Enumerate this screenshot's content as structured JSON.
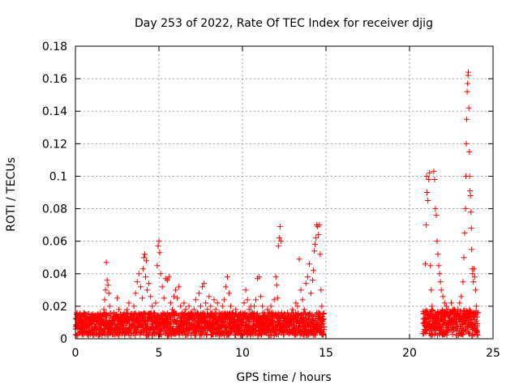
{
  "chart_data": {
    "type": "scatter",
    "title": "Day 253 of 2022, Rate Of TEC Index for receiver djig",
    "xlabel": "GPS time / hours",
    "ylabel": "ROTI / TECUs",
    "xlim": [
      0,
      25
    ],
    "ylim": [
      0,
      0.18
    ],
    "xticks": [
      0,
      5,
      10,
      15,
      20,
      25
    ],
    "xtick_labels": [
      "0",
      "5",
      "10",
      "15",
      "20",
      "25"
    ],
    "yticks": [
      0,
      0.02,
      0.04,
      0.06,
      0.08,
      0.1,
      0.12,
      0.14,
      0.16,
      0.18
    ],
    "ytick_labels": [
      "0",
      "0.02",
      "0.04",
      "0.06",
      "0.08",
      "0.1",
      "0.12",
      "0.14",
      "0.16",
      "0.18"
    ],
    "grid": true,
    "marker": "+",
    "color": "#ff0000",
    "series": [
      {
        "name": "ROTI",
        "points": [
          [
            0.05,
            0.012
          ],
          [
            0.1,
            0.016
          ],
          [
            0.15,
            0.008
          ],
          [
            0.2,
            0.014
          ],
          [
            0.3,
            0.01
          ],
          [
            0.4,
            0.006
          ],
          [
            0.5,
            0.012
          ],
          [
            0.6,
            0.009
          ],
          [
            0.7,
            0.013
          ],
          [
            0.8,
            0.007
          ],
          [
            0.9,
            0.011
          ],
          [
            1.0,
            0.009
          ],
          [
            1.1,
            0.014
          ],
          [
            1.2,
            0.006
          ],
          [
            1.3,
            0.012
          ],
          [
            1.4,
            0.008
          ],
          [
            1.5,
            0.015
          ],
          [
            1.6,
            0.01
          ],
          [
            1.7,
            0.018
          ],
          [
            1.75,
            0.024
          ],
          [
            1.8,
            0.03
          ],
          [
            1.85,
            0.047
          ],
          [
            1.9,
            0.036
          ],
          [
            1.95,
            0.033
          ],
          [
            2.0,
            0.028
          ],
          [
            2.05,
            0.02
          ],
          [
            2.1,
            0.014
          ],
          [
            2.2,
            0.011
          ],
          [
            2.3,
            0.016
          ],
          [
            2.4,
            0.012
          ],
          [
            2.5,
            0.025
          ],
          [
            2.6,
            0.018
          ],
          [
            2.7,
            0.013
          ],
          [
            2.8,
            0.01
          ],
          [
            2.9,
            0.015
          ],
          [
            3.0,
            0.012
          ],
          [
            3.1,
            0.018
          ],
          [
            3.2,
            0.022
          ],
          [
            3.3,
            0.015
          ],
          [
            3.4,
            0.012
          ],
          [
            3.5,
            0.02
          ],
          [
            3.6,
            0.028
          ],
          [
            3.7,
            0.035
          ],
          [
            3.8,
            0.04
          ],
          [
            3.9,
            0.032
          ],
          [
            4.0,
            0.025
          ],
          [
            4.05,
            0.043
          ],
          [
            4.1,
            0.05
          ],
          [
            4.15,
            0.052
          ],
          [
            4.2,
            0.038
          ],
          [
            4.25,
            0.048
          ],
          [
            4.3,
            0.03
          ],
          [
            4.4,
            0.034
          ],
          [
            4.5,
            0.026
          ],
          [
            4.6,
            0.02
          ],
          [
            4.7,
            0.016
          ],
          [
            4.8,
            0.022
          ],
          [
            4.9,
            0.045
          ],
          [
            4.95,
            0.057
          ],
          [
            5.0,
            0.06
          ],
          [
            5.05,
            0.053
          ],
          [
            5.1,
            0.04
          ],
          [
            5.2,
            0.032
          ],
          [
            5.3,
            0.025
          ],
          [
            5.4,
            0.037
          ],
          [
            5.5,
            0.036
          ],
          [
            5.6,
            0.038
          ],
          [
            5.7,
            0.022
          ],
          [
            5.8,
            0.018
          ],
          [
            5.9,
            0.026
          ],
          [
            6.0,
            0.03
          ],
          [
            6.1,
            0.025
          ],
          [
            6.2,
            0.032
          ],
          [
            6.3,
            0.02
          ],
          [
            6.4,
            0.016
          ],
          [
            6.5,
            0.022
          ],
          [
            6.6,
            0.018
          ],
          [
            6.7,
            0.014
          ],
          [
            6.8,
            0.02
          ],
          [
            6.9,
            0.016
          ],
          [
            7.0,
            0.012
          ],
          [
            7.1,
            0.018
          ],
          [
            7.2,
            0.024
          ],
          [
            7.3,
            0.016
          ],
          [
            7.4,
            0.028
          ],
          [
            7.5,
            0.02
          ],
          [
            7.6,
            0.032
          ],
          [
            7.7,
            0.034
          ],
          [
            7.8,
            0.022
          ],
          [
            7.9,
            0.018
          ],
          [
            8.0,
            0.026
          ],
          [
            8.1,
            0.02
          ],
          [
            8.2,
            0.016
          ],
          [
            8.3,
            0.024
          ],
          [
            8.4,
            0.018
          ],
          [
            8.5,
            0.022
          ],
          [
            8.6,
            0.016
          ],
          [
            8.7,
            0.014
          ],
          [
            8.8,
            0.02
          ],
          [
            8.9,
            0.024
          ],
          [
            9.0,
            0.032
          ],
          [
            9.1,
            0.038
          ],
          [
            9.2,
            0.028
          ],
          [
            9.3,
            0.02
          ],
          [
            9.4,
            0.016
          ],
          [
            9.5,
            0.012
          ],
          [
            9.6,
            0.018
          ],
          [
            9.7,
            0.014
          ],
          [
            9.8,
            0.012
          ],
          [
            9.9,
            0.016
          ],
          [
            10.0,
            0.014
          ],
          [
            10.1,
            0.022
          ],
          [
            10.2,
            0.03
          ],
          [
            10.3,
            0.024
          ],
          [
            10.4,
            0.018
          ],
          [
            10.5,
            0.02
          ],
          [
            10.6,
            0.016
          ],
          [
            10.7,
            0.02
          ],
          [
            10.8,
            0.024
          ],
          [
            10.9,
            0.037
          ],
          [
            11.0,
            0.038
          ],
          [
            11.1,
            0.026
          ],
          [
            11.2,
            0.02
          ],
          [
            11.3,
            0.016
          ],
          [
            11.4,
            0.012
          ],
          [
            11.5,
            0.018
          ],
          [
            11.6,
            0.014
          ],
          [
            11.7,
            0.02
          ],
          [
            11.8,
            0.016
          ],
          [
            11.9,
            0.024
          ],
          [
            12.0,
            0.038
          ],
          [
            12.05,
            0.033
          ],
          [
            12.1,
            0.025
          ],
          [
            12.15,
            0.057
          ],
          [
            12.2,
            0.062
          ],
          [
            12.25,
            0.069
          ],
          [
            12.3,
            0.06
          ],
          [
            12.4,
            0.014
          ],
          [
            12.5,
            0.01
          ],
          [
            12.6,
            0.012
          ],
          [
            12.7,
            0.016
          ],
          [
            12.8,
            0.014
          ],
          [
            12.9,
            0.012
          ],
          [
            13.0,
            0.018
          ],
          [
            13.1,
            0.014
          ],
          [
            13.2,
            0.022
          ],
          [
            13.3,
            0.02
          ],
          [
            13.4,
            0.049
          ],
          [
            13.5,
            0.03
          ],
          [
            13.6,
            0.024
          ],
          [
            13.7,
            0.018
          ],
          [
            13.8,
            0.034
          ],
          [
            13.9,
            0.038
          ],
          [
            14.0,
            0.046
          ],
          [
            14.1,
            0.028
          ],
          [
            14.2,
            0.036
          ],
          [
            14.25,
            0.042
          ],
          [
            14.3,
            0.054
          ],
          [
            14.35,
            0.058
          ],
          [
            14.4,
            0.062
          ],
          [
            14.45,
            0.07
          ],
          [
            14.5,
            0.069
          ],
          [
            14.55,
            0.064
          ],
          [
            14.6,
            0.07
          ],
          [
            14.65,
            0.052
          ],
          [
            14.7,
            0.03
          ],
          [
            14.75,
            0.02
          ],
          [
            14.8,
            0.012
          ],
          [
            20.9,
            0.012
          ],
          [
            20.95,
            0.046
          ],
          [
            21.0,
            0.07
          ],
          [
            21.02,
            0.1
          ],
          [
            21.05,
            0.09
          ],
          [
            21.1,
            0.085
          ],
          [
            21.15,
            0.098
          ],
          [
            21.2,
            0.102
          ],
          [
            21.25,
            0.045
          ],
          [
            21.3,
            0.03
          ],
          [
            21.35,
            0.02
          ],
          [
            21.45,
            0.103
          ],
          [
            21.5,
            0.098
          ],
          [
            21.55,
            0.08
          ],
          [
            21.6,
            0.076
          ],
          [
            21.65,
            0.06
          ],
          [
            21.7,
            0.052
          ],
          [
            21.75,
            0.045
          ],
          [
            21.8,
            0.04
          ],
          [
            21.85,
            0.035
          ],
          [
            21.9,
            0.03
          ],
          [
            22.0,
            0.026
          ],
          [
            22.1,
            0.022
          ],
          [
            22.2,
            0.02
          ],
          [
            22.3,
            0.018
          ],
          [
            22.4,
            0.016
          ],
          [
            22.5,
            0.022
          ],
          [
            22.6,
            0.018
          ],
          [
            22.7,
            0.016
          ],
          [
            22.8,
            0.014
          ],
          [
            22.9,
            0.018
          ],
          [
            23.0,
            0.022
          ],
          [
            23.1,
            0.026
          ],
          [
            23.2,
            0.035
          ],
          [
            23.25,
            0.05
          ],
          [
            23.3,
            0.065
          ],
          [
            23.35,
            0.08
          ],
          [
            23.38,
            0.1
          ],
          [
            23.4,
            0.12
          ],
          [
            23.42,
            0.135
          ],
          [
            23.45,
            0.152
          ],
          [
            23.48,
            0.157
          ],
          [
            23.5,
            0.162
          ],
          [
            23.52,
            0.164
          ],
          [
            23.55,
            0.142
          ],
          [
            23.58,
            0.115
          ],
          [
            23.6,
            0.1
          ],
          [
            23.62,
            0.091
          ],
          [
            23.65,
            0.088
          ],
          [
            23.68,
            0.078
          ],
          [
            23.7,
            0.068
          ],
          [
            23.72,
            0.055
          ],
          [
            23.75,
            0.043
          ],
          [
            23.78,
            0.04
          ],
          [
            23.82,
            0.035
          ],
          [
            23.86,
            0.043
          ],
          [
            23.9,
            0.038
          ],
          [
            23.95,
            0.03
          ],
          [
            24.0,
            0.02
          ]
        ]
      }
    ],
    "dense_bands": [
      {
        "x_start": 0.0,
        "x_end": 14.9,
        "baseline_min": 0.002,
        "baseline_max": 0.016
      },
      {
        "x_start": 20.8,
        "x_end": 24.1,
        "baseline_min": 0.002,
        "baseline_max": 0.018
      }
    ]
  }
}
